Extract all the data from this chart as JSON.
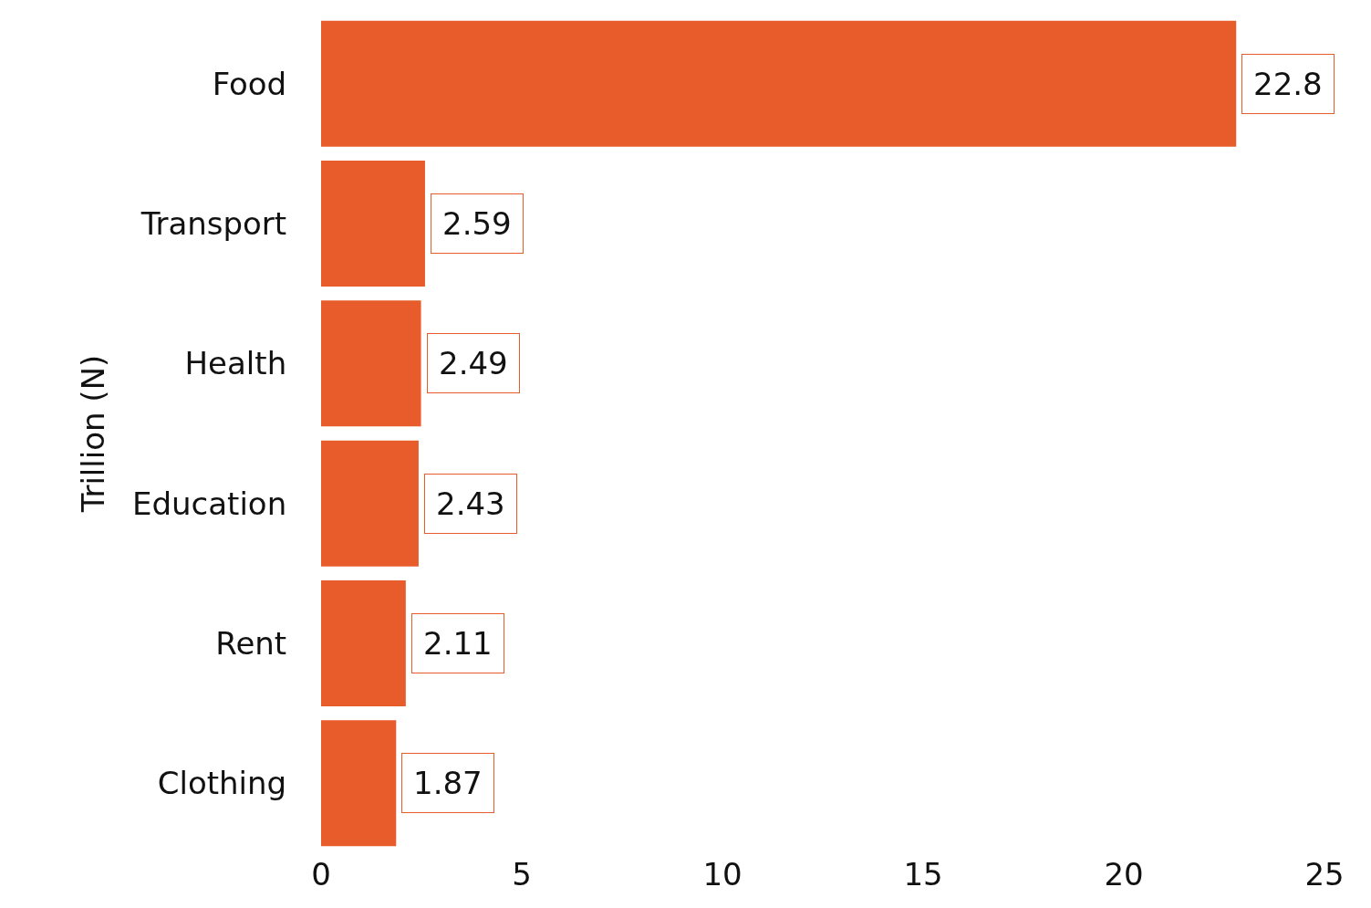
{
  "chart_data": {
    "type": "bar",
    "orientation": "horizontal",
    "ylabel": "Trillion (N)",
    "categories": [
      "Food",
      "Transport",
      "Health",
      "Education",
      "Rent",
      "Clothing"
    ],
    "values": [
      22.8,
      2.59,
      2.49,
      2.43,
      2.11,
      1.87
    ],
    "color": "#e85c2c",
    "xlim": [
      0,
      25
    ],
    "xticks": [
      0,
      5,
      10,
      15,
      20,
      25
    ],
    "data_labels": true
  }
}
